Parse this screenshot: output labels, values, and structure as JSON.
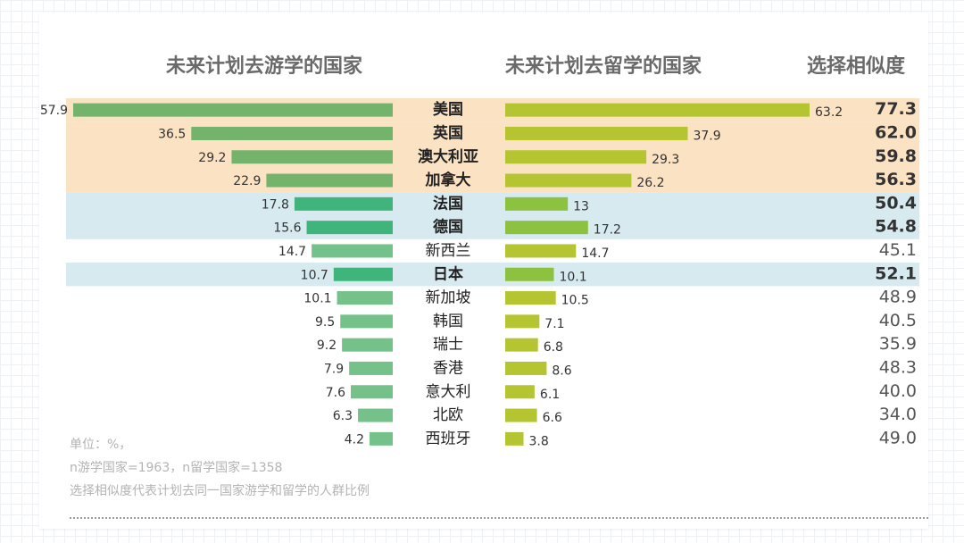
{
  "headers": {
    "travel": "未来计划去游学的国家",
    "study": "未来计划去留学的国家",
    "similarity": "选择相似度"
  },
  "footnotes": [
    "单位：%，",
    "n游学国家=1963，n留学国家=1358",
    "选择相似度代表计划去同一国家游学和留学的人群比例"
  ],
  "colors": {
    "band_orange": "#fae2c2",
    "band_blue": "#d6eaf0",
    "travel_bar": "#74b36b",
    "travel_bar_highlight": "#3fb57b",
    "travel_bar_light": "#74c28a",
    "study_bar": "#b5c531",
    "study_bar_highlight": "#8cc23f",
    "label_text": "#333333",
    "similarity_text": "#555555"
  },
  "chart_data": {
    "type": "bar",
    "layout": "butterfly",
    "categories": [
      "美国",
      "英国",
      "澳大利亚",
      "加拿大",
      "法国",
      "德国",
      "新西兰",
      "日本",
      "新加坡",
      "韩国",
      "瑞士",
      "香港",
      "意大利",
      "北欧",
      "西班牙"
    ],
    "series": [
      {
        "values": [
          57.9,
          36.5,
          29.2,
          22.9,
          17.8,
          15.6,
          14.7,
          10.7,
          10.1,
          9.5,
          9.2,
          7.9,
          7.6,
          6.3,
          4.2
        ]
      },
      {
        "values": [
          63.2,
          37.9,
          29.3,
          26.2,
          13,
          17.2,
          14.7,
          10.1,
          10.5,
          7.1,
          6.8,
          8.6,
          6.1,
          6.6,
          3.8
        ]
      }
    ],
    "similarity": [
      "77.3",
      "62.0",
      "59.8",
      "56.3",
      "50.4",
      "54.8",
      "45.1",
      "52.1",
      "48.9",
      "40.5",
      "35.9",
      "48.3",
      "40.0",
      "34.0",
      "49.0"
    ],
    "highlight": [
      "orange",
      "orange",
      "orange",
      "orange",
      "blue",
      "blue",
      "none",
      "blue",
      "none",
      "none",
      "none",
      "none",
      "none",
      "none",
      "none"
    ],
    "unit": "%"
  }
}
